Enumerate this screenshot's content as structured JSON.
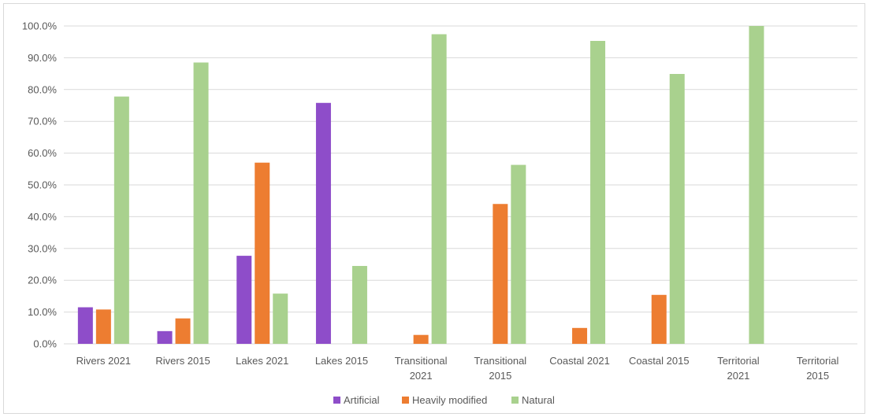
{
  "chart_data": {
    "type": "bar",
    "title": "",
    "xlabel": "",
    "ylabel": "",
    "ylim": [
      0,
      100
    ],
    "y_ticks": [
      "0.0%",
      "10.0%",
      "20.0%",
      "30.0%",
      "40.0%",
      "50.0%",
      "60.0%",
      "70.0%",
      "80.0%",
      "90.0%",
      "100.0%"
    ],
    "grid": true,
    "legend_position": "bottom",
    "categories": [
      [
        "Rivers 2021"
      ],
      [
        "Rivers 2015"
      ],
      [
        "Lakes 2021"
      ],
      [
        "Lakes 2015"
      ],
      [
        "Transitional",
        "2021"
      ],
      [
        "Transitional",
        "2015"
      ],
      [
        "Coastal 2021"
      ],
      [
        "Coastal 2015"
      ],
      [
        "Territorial",
        "2021"
      ],
      [
        "Territorial",
        "2015"
      ]
    ],
    "series": [
      {
        "name": "Artificial",
        "color": "#8e4dc9",
        "values": [
          11.5,
          4.0,
          27.7,
          75.8,
          0,
          0,
          0,
          0,
          0,
          0
        ]
      },
      {
        "name": "Heavily modified",
        "color": "#ed7d31",
        "values": [
          10.8,
          8.0,
          57.0,
          0,
          2.8,
          44.0,
          5.0,
          15.4,
          0,
          0
        ]
      },
      {
        "name": "Natural",
        "color": "#a9d18e",
        "values": [
          77.8,
          88.5,
          15.8,
          24.5,
          97.4,
          56.3,
          95.3,
          84.9,
          100.0,
          0
        ]
      }
    ]
  }
}
